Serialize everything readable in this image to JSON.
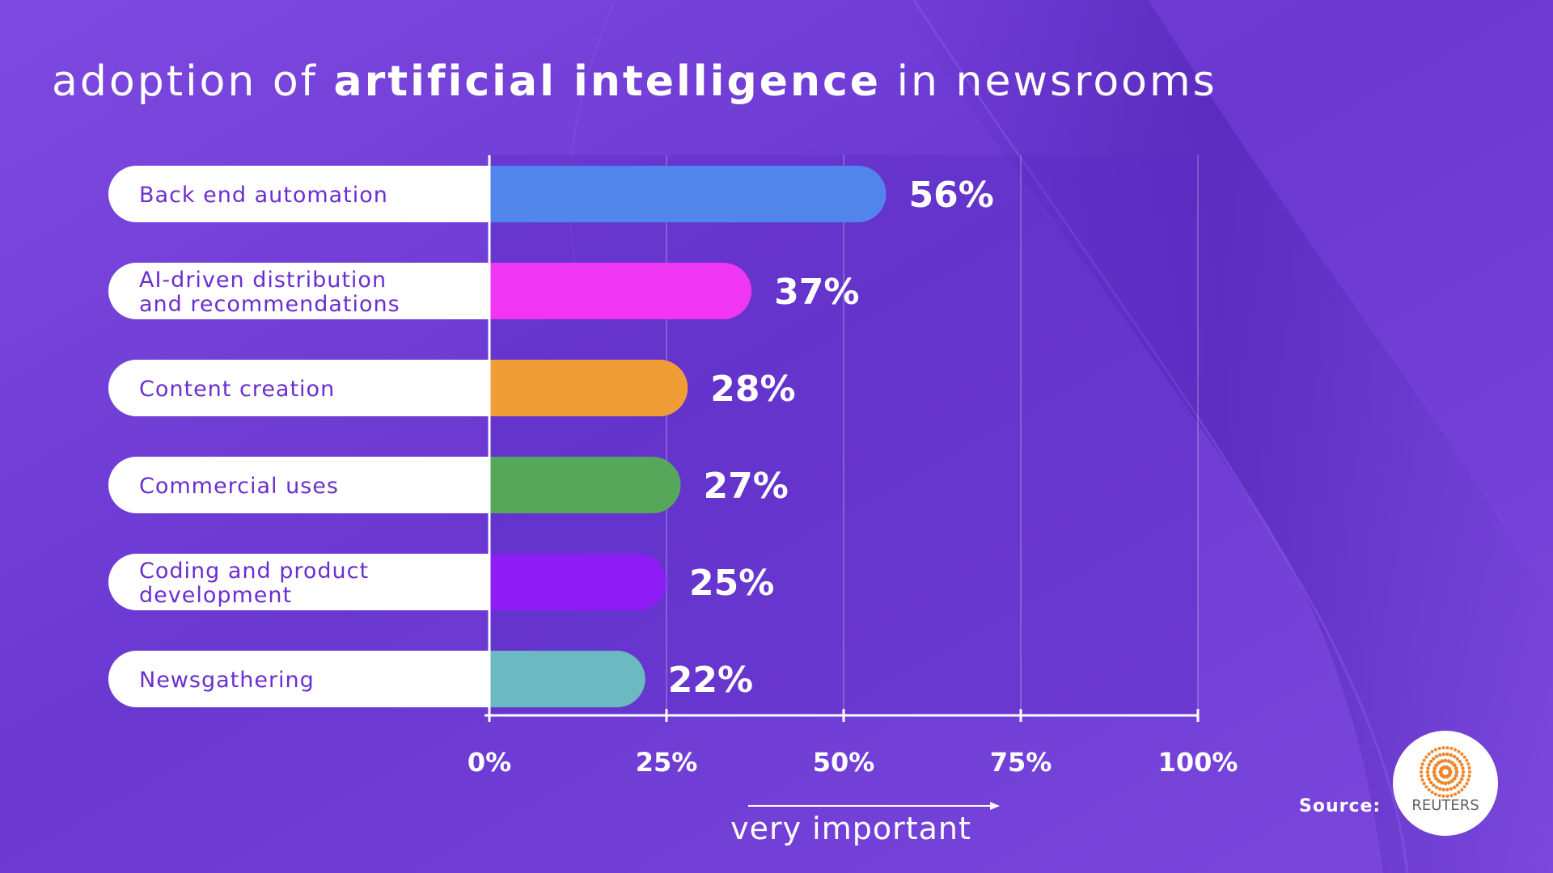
{
  "title": {
    "prefix": "adoption of ",
    "emphasis": "artificial intelligence",
    "suffix": " in newsrooms"
  },
  "chart_data": {
    "type": "bar",
    "orientation": "horizontal",
    "categories": [
      [
        "Back end automation"
      ],
      [
        "AI-driven distribution",
        "and recommendations"
      ],
      [
        "Content creation"
      ],
      [
        "Commercial uses"
      ],
      [
        "Coding and product",
        "development"
      ],
      [
        "Newsgathering"
      ]
    ],
    "values": [
      56,
      37,
      28,
      27,
      25,
      22
    ],
    "value_labels": [
      "56%",
      "37%",
      "28%",
      "27%",
      "25%",
      "22%"
    ],
    "colors": [
      "#5185ec",
      "#f035f3",
      "#f09d38",
      "#57a75b",
      "#8e1cf4",
      "#6bbac2"
    ],
    "xlim": [
      0,
      100
    ],
    "x_ticks": [
      0,
      25,
      50,
      75,
      100
    ],
    "x_tick_labels": [
      "0%",
      "25%",
      "50%",
      "75%",
      "100%"
    ],
    "xlabel": "very important",
    "grid": true
  },
  "source": {
    "label": "Source:",
    "logo": "REUTERS",
    "logo_icon": "reuters-dot-circle-icon"
  },
  "colors": {
    "background": "#7443d6",
    "label_text": "#6a2ed1",
    "white": "#ffffff",
    "logo_orange": "#f0852a"
  }
}
